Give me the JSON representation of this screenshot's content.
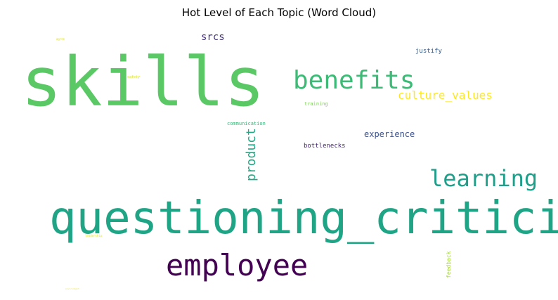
{
  "chart_data": {
    "type": "wordcloud",
    "title": "Hot Level of Each Topic (Word Cloud)",
    "words": [
      {
        "text": "skills",
        "color": "#5ac864",
        "orientation": "horizontal"
      },
      {
        "text": "questioning_criticism",
        "color": "#20a486",
        "orientation": "horizontal"
      },
      {
        "text": "employee",
        "color": "#440154",
        "orientation": "horizontal"
      },
      {
        "text": "benefits",
        "color": "#3bbb75",
        "orientation": "horizontal"
      },
      {
        "text": "learning",
        "color": "#1f9e89",
        "orientation": "horizontal"
      },
      {
        "text": "product",
        "color": "#22a884",
        "orientation": "vertical"
      },
      {
        "text": "culture_values",
        "color": "#fde725",
        "orientation": "horizontal"
      },
      {
        "text": "srcs",
        "color": "#46327e",
        "orientation": "horizontal"
      },
      {
        "text": "experience",
        "color": "#3b528b",
        "orientation": "horizontal"
      },
      {
        "text": "bottlenecks",
        "color": "#482878",
        "orientation": "horizontal"
      },
      {
        "text": "justify",
        "color": "#365c8d",
        "orientation": "horizontal"
      },
      {
        "text": "communication",
        "color": "#35b779",
        "orientation": "horizontal"
      },
      {
        "text": "training",
        "color": "#7ad151",
        "orientation": "horizontal"
      },
      {
        "text": "feedback",
        "color": "#a5db36",
        "orientation": "vertical"
      },
      {
        "text": "safety",
        "color": "#d8e219",
        "orientation": "horizontal"
      },
      {
        "text": "leadership",
        "color": "#e5e419",
        "orientation": "horizontal"
      },
      {
        "text": "agree",
        "color": "#dde318",
        "orientation": "horizontal"
      },
      {
        "text": "environment",
        "color": "#f1e51d",
        "orientation": "horizontal"
      }
    ]
  }
}
